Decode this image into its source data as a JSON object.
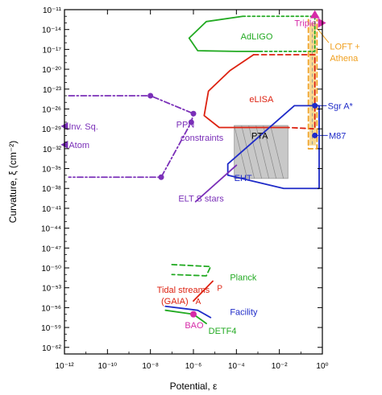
{
  "chart_data": {
    "type": "line",
    "title": "",
    "xlabel": "Potential, ε",
    "ylabel": "Curvature, ξ (cm⁻²)",
    "xscale": "log",
    "yscale": "log",
    "xlim_exp": [
      -12,
      0
    ],
    "ylim_exp": [
      -63,
      -11
    ],
    "xticks": [
      "10⁻¹²",
      "10⁻¹⁰",
      "10⁻⁸",
      "10⁻⁶",
      "10⁻⁴",
      "10⁻²",
      "10⁰"
    ],
    "xtick_exps": [
      -12,
      -10,
      -8,
      -6,
      -4,
      -2,
      0
    ],
    "yticks": [
      "10⁻¹¹",
      "10⁻¹⁴",
      "10⁻¹⁷",
      "10⁻²⁰",
      "10⁻²³",
      "10⁻²⁶",
      "10⁻²⁹",
      "10⁻³²",
      "10⁻³⁵",
      "10⁻³⁸",
      "10⁻⁴¹",
      "10⁻⁴⁴",
      "10⁻⁴⁷",
      "10⁻⁵⁰",
      "10⁻⁵³",
      "10⁻⁵⁶",
      "10⁻⁵⁹",
      "10⁻⁶²"
    ],
    "ytick_exps": [
      -11,
      -14,
      -17,
      -20,
      -23,
      -26,
      -29,
      -32,
      -35,
      -38,
      -41,
      -44,
      -47,
      -50,
      -53,
      -56,
      -59,
      -62
    ],
    "grid": false,
    "colors": {
      "ppn": "#7a2fb8",
      "elisa": "#dd2211",
      "adligo": "#22aa22",
      "loft": "#f0a020",
      "eht": "#1f2bc8",
      "planck": "#22aa22",
      "tidal": "#dd2211",
      "facility": "#1f2bc8",
      "detf4": "#22aa22",
      "bao": "#d62aa8",
      "pta_fill": "#c8c8c8",
      "triple": "#d62aa8",
      "elt": "#7a2fb8"
    },
    "series": [
      {
        "name": "PPN constraints",
        "style": "dashdot",
        "points": [
          [
            -11.8,
            -24.0
          ],
          [
            -8.0,
            -24.0
          ],
          [
            -6.0,
            -26.7
          ],
          [
            -6.1,
            -28.0
          ],
          [
            -7.5,
            -36.3
          ],
          [
            -11.8,
            -36.3
          ]
        ]
      },
      {
        "name": "eLISA",
        "style": "solid",
        "points": [
          [
            -3.2,
            -17.8
          ],
          [
            -4.3,
            -20.2
          ],
          [
            -5.3,
            -23.3
          ],
          [
            -5.5,
            -27.0
          ],
          [
            -4.8,
            -28.8
          ],
          [
            -3.5,
            -28.8
          ],
          [
            -1.6,
            -28.8
          ]
        ]
      },
      {
        "name": "eLISA",
        "style": "dashed",
        "points": [
          [
            -3.2,
            -17.8
          ],
          [
            -0.35,
            -17.8
          ],
          [
            -0.35,
            -29.0
          ],
          [
            -1.6,
            -28.8
          ]
        ]
      },
      {
        "name": "AdLIGO",
        "style": "solid",
        "points": [
          [
            -3.7,
            -12.0
          ],
          [
            -5.4,
            -12.8
          ],
          [
            -6.2,
            -15.3
          ],
          [
            -5.8,
            -17.2
          ],
          [
            -4.0,
            -17.3
          ],
          [
            -2.9,
            -17.3
          ]
        ]
      },
      {
        "name": "AdLIGO",
        "style": "dotted",
        "points": [
          [
            -3.7,
            -12.0
          ],
          [
            -0.35,
            -12.0
          ],
          [
            -0.35,
            -17.3
          ],
          [
            -2.9,
            -17.3
          ]
        ]
      },
      {
        "name": "LOFT + Athena",
        "style": "dashed",
        "points": [
          [
            -0.65,
            -12.5
          ],
          [
            -0.65,
            -32.0
          ],
          [
            -0.25,
            -32.0
          ],
          [
            -0.25,
            -12.5
          ]
        ]
      },
      {
        "name": "EHT",
        "style": "solid",
        "points": [
          [
            -1.3,
            -25.5
          ],
          [
            -0.15,
            -25.5
          ],
          [
            -0.15,
            -38.0
          ],
          [
            -1.8,
            -38.0
          ],
          [
            -4.4,
            -36.0
          ],
          [
            -4.4,
            -34.3
          ],
          [
            -1.3,
            -25.5
          ]
        ]
      },
      {
        "name": "Tidal streams",
        "style": "solid",
        "points": [
          [
            -6.0,
            -55.0
          ],
          [
            -5.1,
            -52.0
          ]
        ]
      },
      {
        "name": "Facility",
        "style": "solid",
        "points": [
          [
            -7.3,
            -55.8
          ],
          [
            -5.8,
            -56.4
          ],
          [
            -5.2,
            -57.5
          ]
        ]
      },
      {
        "name": "DETF4",
        "style": "solid",
        "points": [
          [
            -7.3,
            -56.4
          ],
          [
            -6.0,
            -57.0
          ],
          [
            -5.4,
            -58.4
          ]
        ]
      },
      {
        "name": "Planck",
        "style": "dashed",
        "points": [
          [
            -7.0,
            -49.5
          ],
          [
            -5.2,
            -49.8
          ],
          [
            -5.4,
            -51.2
          ],
          [
            -7.0,
            -51.0
          ]
        ]
      },
      {
        "name": "ELT S stars",
        "style": "solid",
        "points": [
          [
            -4.0,
            -34.5
          ],
          [
            -5.9,
            -40.0
          ]
        ]
      }
    ],
    "points": [
      {
        "name": "ppn-point-1",
        "x": -8.0,
        "y": -24.0
      },
      {
        "name": "ppn-point-2",
        "x": -6.0,
        "y": -26.7
      },
      {
        "name": "ppn-point-3",
        "x": -6.1,
        "y": -28.0
      },
      {
        "name": "ppn-point-4",
        "x": -7.5,
        "y": -36.3
      },
      {
        "name": "sgr-a-point",
        "x": -0.35,
        "y": -25.5
      },
      {
        "name": "m87-point",
        "x": -0.35,
        "y": -30.0
      },
      {
        "name": "bao-point",
        "x": -6.0,
        "y": -57.0
      }
    ],
    "annotations": [
      {
        "text": "AdLIGO",
        "x": -3.8,
        "y": -15.0,
        "color": "#22aa22"
      },
      {
        "text": "Triple",
        "x": -1.3,
        "y": -13.0,
        "color": "#d62aa8"
      },
      {
        "text": "LOFT +",
        "x": 0.35,
        "y": -16.5,
        "color": "#f0a020"
      },
      {
        "text": "Athena",
        "x": 0.35,
        "y": -18.3,
        "color": "#f0a020"
      },
      {
        "text": "eLISA",
        "x": -3.4,
        "y": -24.5,
        "color": "#dd2211"
      },
      {
        "text": "Sgr A*",
        "x": 0.25,
        "y": -25.5,
        "color": "#1f2bc8"
      },
      {
        "text": "PPN",
        "x": -6.8,
        "y": -28.3,
        "color": "#7a2fb8"
      },
      {
        "text": "constraints",
        "x": -6.6,
        "y": -30.3,
        "color": "#7a2fb8"
      },
      {
        "text": "PTA",
        "x": -3.3,
        "y": -30.0,
        "color": "#000000"
      },
      {
        "text": "M87",
        "x": 0.3,
        "y": -30.0,
        "color": "#1f2bc8"
      },
      {
        "text": "Inv. Sq.",
        "x": -11.8,
        "y": -28.6,
        "color": "#7a2fb8"
      },
      {
        "text": "Atom",
        "x": -11.8,
        "y": -31.4,
        "color": "#7a2fb8"
      },
      {
        "text": "EHT",
        "x": -4.1,
        "y": -36.4,
        "color": "#1f2bc8"
      },
      {
        "text": "ELT S stars",
        "x": -6.7,
        "y": -39.5,
        "color": "#7a2fb8"
      },
      {
        "text": "Planck",
        "x": -4.3,
        "y": -51.4,
        "color": "#22aa22"
      },
      {
        "text": "Tidal streams",
        "x": -7.7,
        "y": -53.3,
        "color": "#dd2211"
      },
      {
        "text": "(GAIA)",
        "x": -7.5,
        "y": -55.0,
        "color": "#dd2211"
      },
      {
        "text": "P",
        "x": -4.9,
        "y": -53.0,
        "color": "#dd2211"
      },
      {
        "text": "A",
        "x": -5.9,
        "y": -55.0,
        "color": "#dd2211"
      },
      {
        "text": "Facility",
        "x": -4.3,
        "y": -56.6,
        "color": "#1f2bc8"
      },
      {
        "text": "BAO",
        "x": -6.4,
        "y": -58.6,
        "color": "#d62aa8"
      },
      {
        "text": "DETF4",
        "x": -5.3,
        "y": -59.5,
        "color": "#22aa22"
      }
    ]
  }
}
